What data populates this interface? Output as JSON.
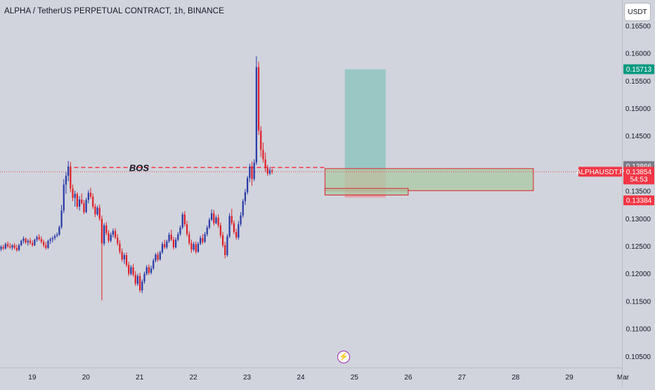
{
  "header": {
    "title": "ALPHA / TetherUS PERPETUAL CONTRACT, 1h, BINANCE",
    "currency_button": "USDT"
  },
  "colors": {
    "background": "#d1d4dc",
    "up_candle": "#2a3ba8",
    "down_candle": "#e0202a",
    "target_zone": "#8fc4bf",
    "stop_zone": "#e69aa3",
    "demand_zone": "#a9c9a4",
    "zone_border": "#e0202a",
    "target_label": "#089981",
    "price_label": "#f23645",
    "prev_close_label": "#787b86"
  },
  "icons": {
    "event": "lightning-icon"
  },
  "chart_data": {
    "type": "candlestick",
    "title": "ALPHA / TetherUS PERPETUAL CONTRACT, 1h, BINANCE",
    "x_ticks": [
      "19",
      "20",
      "21",
      "22",
      "23",
      "24",
      "25",
      "26",
      "27",
      "28",
      "29",
      "Mar"
    ],
    "y_ticks": [
      "0.16500",
      "0.16000",
      "0.15500",
      "0.15000",
      "0.14500",
      "0.14000",
      "0.13500",
      "0.13000",
      "0.12500",
      "0.12000",
      "0.11500",
      "0.11000",
      "0.10500"
    ],
    "ylim": [
      0.103,
      0.1697
    ],
    "xlim_days": [
      18.4,
      29.98
    ],
    "day_ticks": [
      19,
      20,
      21,
      22,
      23,
      24,
      25,
      26,
      27,
      28,
      29,
      30
    ],
    "symbol_label": "ALPHAUSDT.P",
    "last_price": "0.13854",
    "countdown": "54:53",
    "prev_close": "0.13866",
    "target_price": "0.15713",
    "stop_price": "0.13384",
    "annotation": {
      "text": "BOS",
      "level": 0.1393,
      "from_day": 19.78,
      "to_day": 24.45
    },
    "current_price_level": 0.13854,
    "target_zone": {
      "from_day": 24.82,
      "to_day": 25.58,
      "low": 0.1387,
      "high": 0.15713
    },
    "stop_zone": {
      "from_day": 24.82,
      "to_day": 25.58,
      "low": 0.13384,
      "high": 0.1387
    },
    "demand_zones": [
      {
        "from_day": 24.45,
        "to_day": 28.33,
        "low": 0.1351,
        "high": 0.1391
      },
      {
        "from_day": 24.45,
        "to_day": 26.0,
        "low": 0.1343,
        "high": 0.1355
      }
    ],
    "candle_start_day": 18.42,
    "candle_interval_days": 0.0417,
    "ohlc": [
      [
        0.1245,
        0.1252,
        0.1241,
        0.1249
      ],
      [
        0.1249,
        0.1253,
        0.1243,
        0.1246
      ],
      [
        0.1246,
        0.1257,
        0.1244,
        0.1254
      ],
      [
        0.1254,
        0.1259,
        0.1247,
        0.125
      ],
      [
        0.125,
        0.1256,
        0.1245,
        0.1248
      ],
      [
        0.1248,
        0.1254,
        0.1243,
        0.1252
      ],
      [
        0.1252,
        0.1256,
        0.1244,
        0.1247
      ],
      [
        0.1247,
        0.1253,
        0.124,
        0.1243
      ],
      [
        0.1243,
        0.1255,
        0.1241,
        0.1252
      ],
      [
        0.1252,
        0.1262,
        0.125,
        0.126
      ],
      [
        0.126,
        0.1268,
        0.1255,
        0.1264
      ],
      [
        0.1264,
        0.1266,
        0.1254,
        0.1257
      ],
      [
        0.1257,
        0.1263,
        0.1251,
        0.126
      ],
      [
        0.126,
        0.1265,
        0.1253,
        0.1256
      ],
      [
        0.1256,
        0.1261,
        0.1249,
        0.1252
      ],
      [
        0.1252,
        0.1264,
        0.125,
        0.1262
      ],
      [
        0.1262,
        0.127,
        0.1258,
        0.1267
      ],
      [
        0.1267,
        0.1272,
        0.126,
        0.1263
      ],
      [
        0.1263,
        0.1268,
        0.1255,
        0.1258
      ],
      [
        0.1258,
        0.1262,
        0.1248,
        0.1252
      ],
      [
        0.1252,
        0.1258,
        0.1244,
        0.1247
      ],
      [
        0.1247,
        0.1262,
        0.1245,
        0.126
      ],
      [
        0.126,
        0.1266,
        0.1254,
        0.1263
      ],
      [
        0.1263,
        0.1268,
        0.1257,
        0.1265
      ],
      [
        0.1265,
        0.1272,
        0.1261,
        0.1269
      ],
      [
        0.1269,
        0.1275,
        0.1266,
        0.1271
      ],
      [
        0.1271,
        0.1288,
        0.1269,
        0.1285
      ],
      [
        0.1285,
        0.1325,
        0.1282,
        0.1315
      ],
      [
        0.1315,
        0.1372,
        0.131,
        0.1362
      ],
      [
        0.1362,
        0.1385,
        0.1345,
        0.1378
      ],
      [
        0.1378,
        0.1405,
        0.1368,
        0.1395
      ],
      [
        0.1395,
        0.1403,
        0.1348,
        0.1355
      ],
      [
        0.1355,
        0.1362,
        0.1332,
        0.1338
      ],
      [
        0.1338,
        0.1351,
        0.1322,
        0.1345
      ],
      [
        0.1345,
        0.1348,
        0.1318,
        0.1322
      ],
      [
        0.1322,
        0.1341,
        0.1315,
        0.1335
      ],
      [
        0.1335,
        0.1346,
        0.1326,
        0.1328
      ],
      [
        0.1328,
        0.1334,
        0.1308,
        0.1312
      ],
      [
        0.1312,
        0.1338,
        0.131,
        0.1334
      ],
      [
        0.1334,
        0.1352,
        0.1328,
        0.1347
      ],
      [
        0.1347,
        0.1356,
        0.1336,
        0.134
      ],
      [
        0.134,
        0.1346,
        0.1318,
        0.1322
      ],
      [
        0.1322,
        0.1327,
        0.1303,
        0.1308
      ],
      [
        0.1308,
        0.1324,
        0.1305,
        0.132
      ],
      [
        0.132,
        0.1326,
        0.1296,
        0.13
      ],
      [
        0.13,
        0.1306,
        0.1152,
        0.1255
      ],
      [
        0.1255,
        0.1292,
        0.1251,
        0.1288
      ],
      [
        0.1288,
        0.1294,
        0.127,
        0.1274
      ],
      [
        0.1274,
        0.1279,
        0.1256,
        0.126
      ],
      [
        0.126,
        0.1275,
        0.1257,
        0.1271
      ],
      [
        0.1271,
        0.1282,
        0.1266,
        0.1278
      ],
      [
        0.1278,
        0.1283,
        0.1263,
        0.1266
      ],
      [
        0.1266,
        0.1272,
        0.1251,
        0.1255
      ],
      [
        0.1255,
        0.1261,
        0.1236,
        0.124
      ],
      [
        0.124,
        0.1246,
        0.1222,
        0.1226
      ],
      [
        0.1226,
        0.1238,
        0.1218,
        0.1234
      ],
      [
        0.1234,
        0.1239,
        0.1212,
        0.1216
      ],
      [
        0.1216,
        0.1222,
        0.1196,
        0.12
      ],
      [
        0.12,
        0.1216,
        0.1197,
        0.1212
      ],
      [
        0.1212,
        0.1218,
        0.1195,
        0.1198
      ],
      [
        0.1198,
        0.1205,
        0.1178,
        0.1182
      ],
      [
        0.1182,
        0.12,
        0.1178,
        0.1196
      ],
      [
        0.1196,
        0.1202,
        0.1166,
        0.117
      ],
      [
        0.117,
        0.119,
        0.1165,
        0.1186
      ],
      [
        0.1186,
        0.1204,
        0.1182,
        0.12
      ],
      [
        0.12,
        0.1216,
        0.1197,
        0.1212
      ],
      [
        0.1212,
        0.1217,
        0.1198,
        0.1202
      ],
      [
        0.1202,
        0.1215,
        0.1199,
        0.121
      ],
      [
        0.121,
        0.1228,
        0.1207,
        0.1224
      ],
      [
        0.1224,
        0.1238,
        0.1221,
        0.1235
      ],
      [
        0.1235,
        0.124,
        0.1222,
        0.1226
      ],
      [
        0.1226,
        0.1242,
        0.1224,
        0.1239
      ],
      [
        0.1239,
        0.1258,
        0.1236,
        0.1254
      ],
      [
        0.1254,
        0.1262,
        0.1245,
        0.1248
      ],
      [
        0.1248,
        0.1262,
        0.1245,
        0.1259
      ],
      [
        0.1259,
        0.1275,
        0.1256,
        0.1271
      ],
      [
        0.1271,
        0.128,
        0.1259,
        0.1262
      ],
      [
        0.1262,
        0.1267,
        0.1244,
        0.1248
      ],
      [
        0.1248,
        0.1266,
        0.1246,
        0.1262
      ],
      [
        0.1262,
        0.1276,
        0.1259,
        0.1272
      ],
      [
        0.1272,
        0.1288,
        0.1269,
        0.1284
      ],
      [
        0.1284,
        0.1312,
        0.1281,
        0.1308
      ],
      [
        0.1308,
        0.1314,
        0.1286,
        0.129
      ],
      [
        0.129,
        0.1296,
        0.1268,
        0.1272
      ],
      [
        0.1272,
        0.1277,
        0.1252,
        0.1256
      ],
      [
        0.1256,
        0.1262,
        0.1238,
        0.1244
      ],
      [
        0.1244,
        0.1258,
        0.1241,
        0.1254
      ],
      [
        0.1254,
        0.1259,
        0.1236,
        0.124
      ],
      [
        0.124,
        0.1258,
        0.1238,
        0.1255
      ],
      [
        0.1255,
        0.1269,
        0.1252,
        0.1265
      ],
      [
        0.1265,
        0.1272,
        0.1254,
        0.1258
      ],
      [
        0.1258,
        0.1276,
        0.1256,
        0.1272
      ],
      [
        0.1272,
        0.1288,
        0.1268,
        0.1284
      ],
      [
        0.1284,
        0.1302,
        0.1281,
        0.1298
      ],
      [
        0.1298,
        0.1317,
        0.1296,
        0.131
      ],
      [
        0.131,
        0.1316,
        0.1288,
        0.1292
      ],
      [
        0.1292,
        0.1306,
        0.129,
        0.1302
      ],
      [
        0.1302,
        0.1308,
        0.1284,
        0.1288
      ],
      [
        0.1288,
        0.1293,
        0.1265,
        0.127
      ],
      [
        0.127,
        0.1276,
        0.1248,
        0.1252
      ],
      [
        0.1252,
        0.1258,
        0.1228,
        0.1234
      ],
      [
        0.1234,
        0.1272,
        0.1231,
        0.1268
      ],
      [
        0.1268,
        0.131,
        0.1265,
        0.1305
      ],
      [
        0.1305,
        0.1318,
        0.1288,
        0.1292
      ],
      [
        0.1292,
        0.1297,
        0.1272,
        0.1276
      ],
      [
        0.1276,
        0.1282,
        0.1262,
        0.1266
      ],
      [
        0.1266,
        0.1296,
        0.1262,
        0.129
      ],
      [
        0.129,
        0.1312,
        0.1286,
        0.1306
      ],
      [
        0.1306,
        0.1336,
        0.1302,
        0.1332
      ],
      [
        0.1332,
        0.1354,
        0.1325,
        0.1348
      ],
      [
        0.1348,
        0.1378,
        0.1344,
        0.1374
      ],
      [
        0.1374,
        0.14,
        0.1366,
        0.1395
      ],
      [
        0.1395,
        0.1404,
        0.136,
        0.1372
      ],
      [
        0.1372,
        0.1408,
        0.1368,
        0.1402
      ],
      [
        0.1402,
        0.1595,
        0.1398,
        0.1575
      ],
      [
        0.1575,
        0.1585,
        0.1452,
        0.146
      ],
      [
        0.146,
        0.1468,
        0.1412,
        0.1425
      ],
      [
        0.1425,
        0.1438,
        0.1402,
        0.1408
      ],
      [
        0.1408,
        0.142,
        0.1385,
        0.1392
      ],
      [
        0.1392,
        0.1398,
        0.1378,
        0.1382
      ],
      [
        0.1382,
        0.1394,
        0.1379,
        0.1388
      ],
      [
        0.1388,
        0.1391,
        0.1381,
        0.13854
      ]
    ]
  }
}
